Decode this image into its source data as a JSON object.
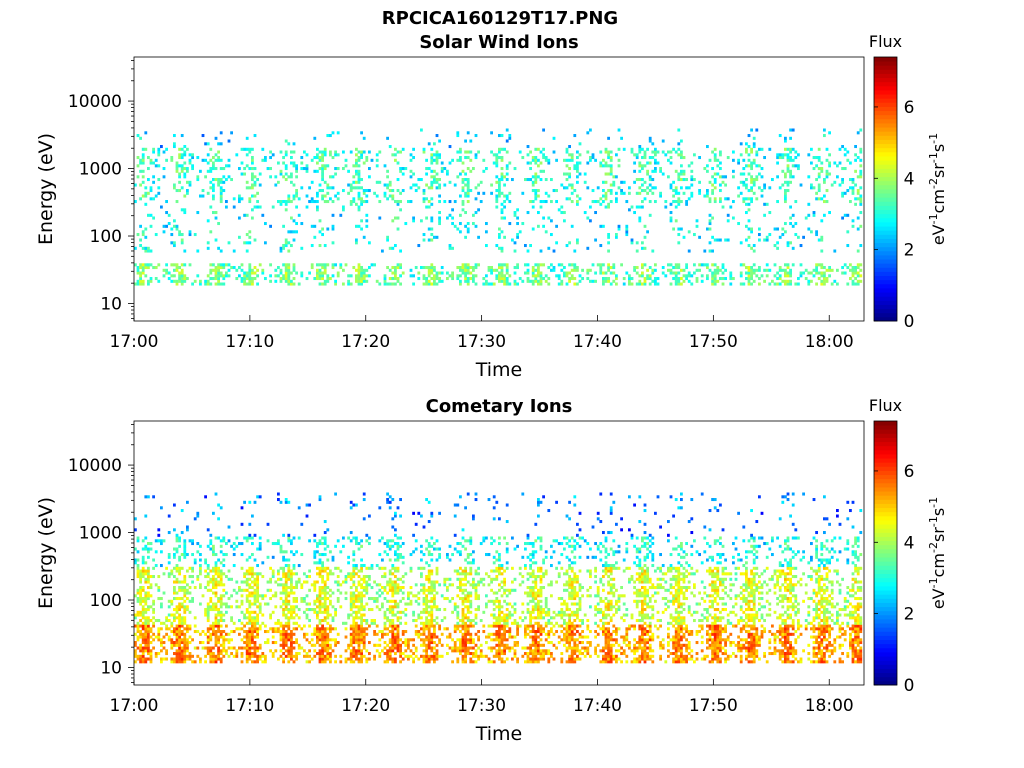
{
  "figure": {
    "title": "RPCICA160129T17.PNG"
  },
  "colorbar": {
    "label": "Flux",
    "unit_text": "eV-1cm-2sr-1s-1",
    "unit_parts": [
      {
        "t": "eV",
        "sup": false
      },
      {
        "t": "-1",
        "sup": true
      },
      {
        "t": "cm",
        "sup": false
      },
      {
        "t": "-2",
        "sup": true
      },
      {
        "t": "sr",
        "sup": false
      },
      {
        "t": "-1",
        "sup": true
      },
      {
        "t": "s",
        "sup": false
      },
      {
        "t": "-1",
        "sup": true
      }
    ],
    "ticks": [
      "0",
      "2",
      "4",
      "6"
    ],
    "range": [
      0,
      7.4
    ],
    "colormap": "jet"
  },
  "chart_data": [
    {
      "type": "heatmap",
      "title": "Solar Wind Ions",
      "xlabel": "Time",
      "ylabel": "Energy (eV)",
      "xticks": [
        "17:00",
        "17:10",
        "17:20",
        "17:30",
        "17:40",
        "17:50",
        "18:00"
      ],
      "xlim_minutes": [
        0,
        63
      ],
      "yticks": [
        "10",
        "100",
        "1000",
        "10000"
      ],
      "yscale": "log",
      "ylim": [
        5.5,
        45000
      ],
      "bands": [
        {
          "emin": 18,
          "emax": 38,
          "level": 3.2,
          "density": 0.55
        },
        {
          "emin": 60,
          "emax": 350,
          "level": 2.5,
          "density": 0.12
        },
        {
          "emin": 300,
          "emax": 2000,
          "level": 2.8,
          "density": 0.3
        },
        {
          "emin": 2000,
          "emax": 4000,
          "level": 2.1,
          "density": 0.06
        }
      ]
    },
    {
      "type": "heatmap",
      "title": "Cometary Ions",
      "xlabel": "Time",
      "ylabel": "Energy (eV)",
      "xticks": [
        "17:00",
        "17:10",
        "17:20",
        "17:30",
        "17:40",
        "17:50",
        "18:00"
      ],
      "xlim_minutes": [
        0,
        63
      ],
      "yticks": [
        "10",
        "100",
        "1000",
        "10000"
      ],
      "yscale": "log",
      "ylim": [
        5.5,
        45000
      ],
      "bands": [
        {
          "emin": 12,
          "emax": 45,
          "level": 5.0,
          "density": 0.7
        },
        {
          "emin": 45,
          "emax": 300,
          "level": 3.9,
          "density": 0.55
        },
        {
          "emin": 300,
          "emax": 900,
          "level": 2.6,
          "density": 0.3
        },
        {
          "emin": 900,
          "emax": 4000,
          "level": 1.5,
          "density": 0.07
        }
      ]
    }
  ]
}
